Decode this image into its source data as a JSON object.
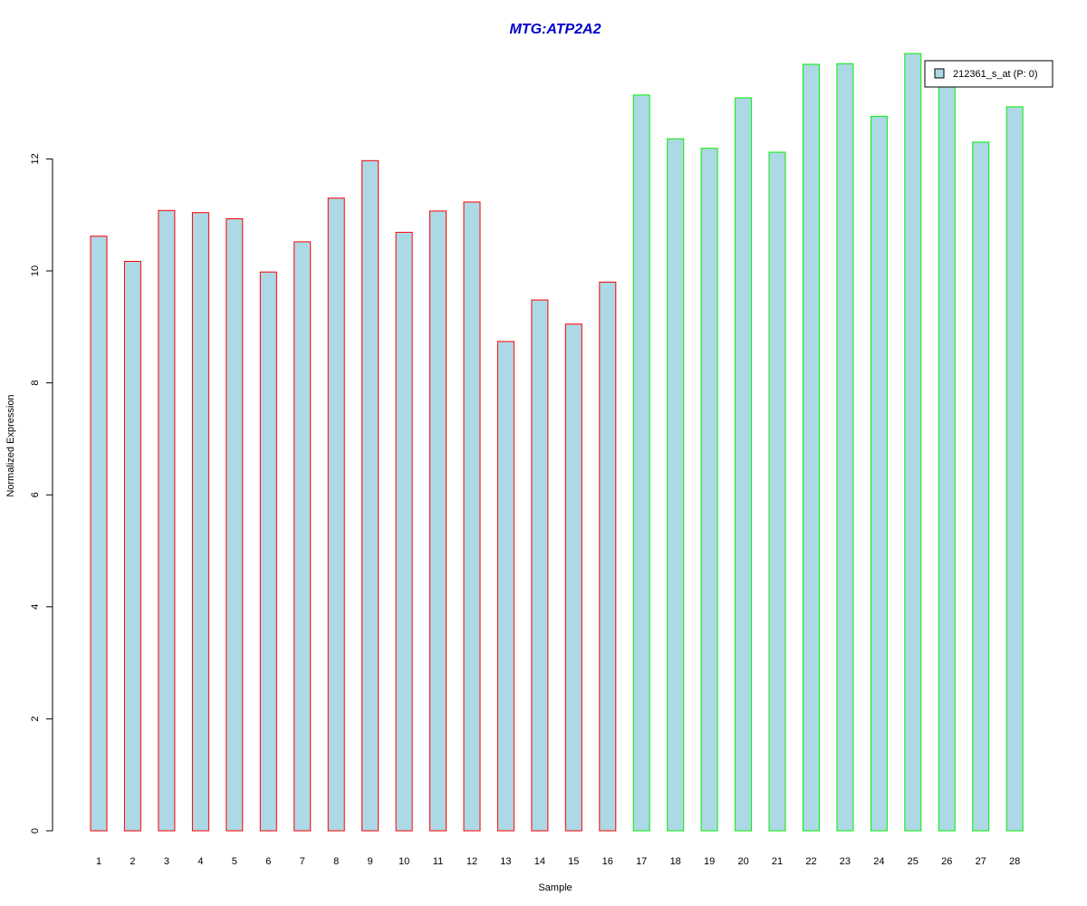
{
  "chart_data": {
    "type": "bar",
    "title": "MTG:ATP2A2",
    "xlabel": "Sample",
    "ylabel": "Normalized Expression",
    "categories": [
      "1",
      "2",
      "3",
      "4",
      "5",
      "6",
      "7",
      "8",
      "9",
      "10",
      "11",
      "12",
      "13",
      "14",
      "15",
      "16",
      "17",
      "18",
      "19",
      "20",
      "21",
      "22",
      "23",
      "24",
      "25",
      "26",
      "27",
      "28"
    ],
    "series": [
      {
        "name": "212361_s_at (P: 0)",
        "values": [
          10.62,
          10.17,
          11.08,
          11.04,
          10.93,
          9.98,
          10.52,
          11.3,
          11.97,
          10.69,
          11.07,
          11.23,
          8.74,
          9.48,
          9.05,
          9.8,
          13.14,
          12.36,
          12.19,
          13.09,
          12.12,
          13.69,
          13.7,
          12.76,
          13.88,
          13.41,
          12.3,
          12.93
        ]
      }
    ],
    "groups": [
      {
        "samples": [
          1,
          16
        ],
        "border_color": "#ff0000"
      },
      {
        "samples": [
          17,
          28
        ],
        "border_color": "#00ee00"
      }
    ],
    "y_ticks": [
      "0",
      "2",
      "4",
      "6",
      "8",
      "10",
      "12"
    ],
    "ylim": [
      0,
      14
    ],
    "fill_color": "#add8e6",
    "title_color": "#0000cc",
    "grid": false,
    "legend_position": "top-right"
  }
}
